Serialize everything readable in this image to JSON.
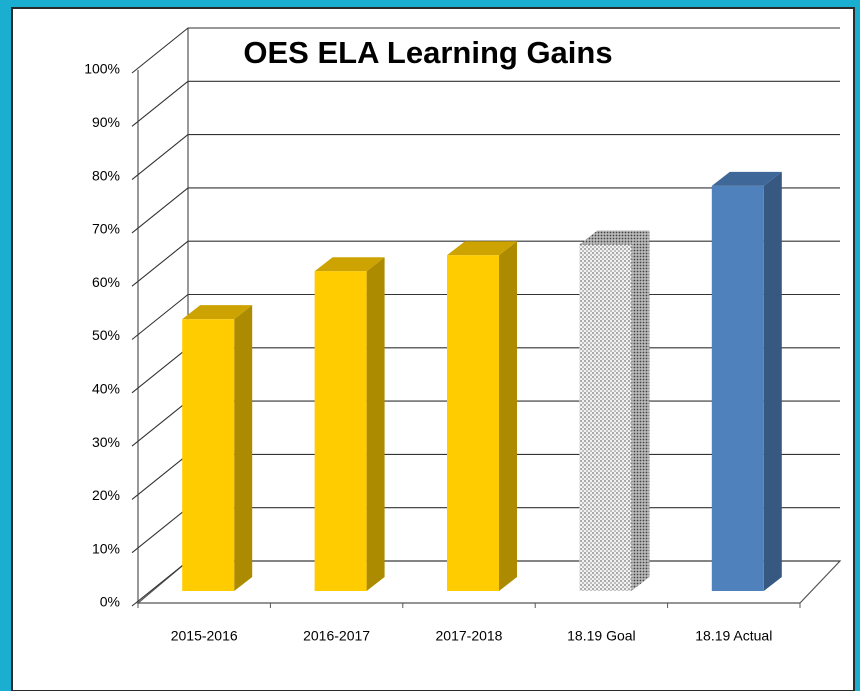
{
  "chart_data": {
    "type": "bar3d",
    "title": "OES ELA Learning Gains",
    "categories": [
      "2015-2016",
      "2016-2017",
      "2017-2018",
      "18.19 Goal",
      "18.19 Actual"
    ],
    "values": [
      51,
      60,
      63,
      65,
      76
    ],
    "colors": [
      "#ffcc00",
      "#ffcc00",
      "#ffcc00",
      "#e6e6e6",
      "#4f81bd"
    ],
    "hatched": [
      false,
      false,
      false,
      true,
      false
    ],
    "ylim": [
      0,
      100
    ],
    "yticks": [
      {
        "value": 0,
        "label": "0%"
      },
      {
        "value": 10,
        "label": "10%"
      },
      {
        "value": 20,
        "label": "20%"
      },
      {
        "value": 30,
        "label": "30%"
      },
      {
        "value": 40,
        "label": "40%"
      },
      {
        "value": 50,
        "label": "50%"
      },
      {
        "value": 60,
        "label": "60%"
      },
      {
        "value": 70,
        "label": "70%"
      },
      {
        "value": 80,
        "label": "80%"
      },
      {
        "value": 90,
        "label": "90%"
      },
      {
        "value": 100,
        "label": "100%"
      }
    ],
    "grid": true
  }
}
